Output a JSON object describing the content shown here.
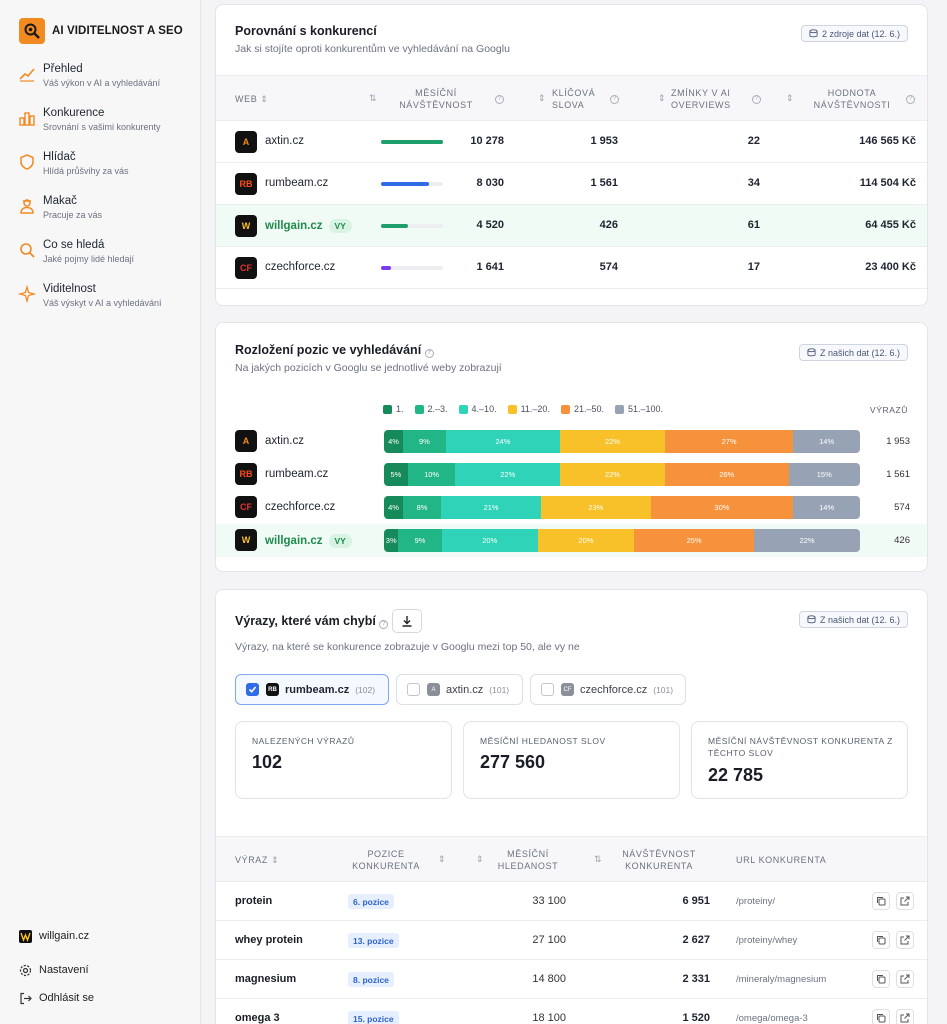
{
  "brand": {
    "name": "AI VIDITELNOST A SEO",
    "accent": "#f28a22"
  },
  "nav": [
    {
      "title": "Přehled",
      "sub": "Váš výkon v AI a vyhledávání",
      "icon": "chart-line-icon"
    },
    {
      "title": "Konkurence",
      "sub": "Srovnání s vašimi konkurenty",
      "icon": "bar-chart-icon"
    },
    {
      "title": "Hlídač",
      "sub": "Hlídá průšvihy za vás",
      "icon": "shield-icon"
    },
    {
      "title": "Makač",
      "sub": "Pracuje za vás",
      "icon": "worker-icon"
    },
    {
      "title": "Co se hledá",
      "sub": "Jaké pojmy lidé hledají",
      "icon": "search-icon"
    },
    {
      "title": "Viditelnost",
      "sub": "Váš výskyt v AI a vyhledávání",
      "icon": "sparkle-icon"
    }
  ],
  "footer": {
    "site": "willgain.cz",
    "settings": "Nastavení",
    "logout": "Odhlásit se"
  },
  "compare": {
    "title": "Porovnání s konkurencí",
    "subtitle": "Jak si stojíte oproti konkurentům ve vyhledávání na Googlu",
    "badge": "2 zdroje dat (12. 6.)",
    "headers": {
      "web": "WEB",
      "traffic": "MĚSÍČNÍ NÁVŠTĚVNOST",
      "keywords": "KLÍČOVÁ SLOVA",
      "ai": "ZMÍNKY V AI OVERVIEWS",
      "value": "HODNOTA NÁVŠTĚVNOSTI"
    },
    "rows": [
      {
        "site": "axtin.cz",
        "logo": "A",
        "traffic": "10 278",
        "traffic_share": 1.0,
        "bar": "#1e9e6a",
        "keywords": "1 953",
        "ai": "22",
        "value": "146 565 Kč",
        "me": false
      },
      {
        "site": "rumbeam.cz",
        "logo": "RB",
        "traffic": "8 030",
        "traffic_share": 0.78,
        "bar": "#2f6ce5",
        "keywords": "1 561",
        "ai": "34",
        "value": "114 504 Kč",
        "me": false
      },
      {
        "site": "willgain.cz",
        "logo": "W",
        "traffic": "4 520",
        "traffic_share": 0.44,
        "bar": "#1e9e6a",
        "keywords": "426",
        "ai": "61",
        "value": "64 455 Kč",
        "me": true,
        "me_label": "VY"
      },
      {
        "site": "czechforce.cz",
        "logo": "CF",
        "traffic": "1 641",
        "traffic_share": 0.16,
        "bar": "#7c3aed",
        "keywords": "574",
        "ai": "17",
        "value": "23 400 Kč",
        "me": false
      }
    ]
  },
  "distribution": {
    "title": "Rozložení pozic ve vyhledávání",
    "subtitle": "Na jakých pozicích v Googlu se jednotlivé weby zobrazují",
    "badge": "Z našich dat (12. 6.)",
    "count_header": "VÝRAZŮ",
    "legend": [
      {
        "label": "1.",
        "color": "#168a5a"
      },
      {
        "label": "2.–3.",
        "color": "#22b585"
      },
      {
        "label": "4.–10.",
        "color": "#2fd4b8"
      },
      {
        "label": "11.–20.",
        "color": "#f8c12a"
      },
      {
        "label": "21.–50.",
        "color": "#f6923c"
      },
      {
        "label": "51.–100.",
        "color": "#97a3b5"
      }
    ],
    "rows": [
      {
        "site": "axtin.cz",
        "logo": "A",
        "values": [
          4,
          9,
          24,
          22,
          27,
          14
        ],
        "count": "1 953",
        "me": false
      },
      {
        "site": "rumbeam.cz",
        "logo": "RB",
        "values": [
          5,
          10,
          22,
          22,
          26,
          15
        ],
        "count": "1 561",
        "me": false
      },
      {
        "site": "czechforce.cz",
        "logo": "CF",
        "values": [
          4,
          8,
          21,
          23,
          30,
          14
        ],
        "count": "574",
        "me": false
      },
      {
        "site": "willgain.cz",
        "logo": "W",
        "values": [
          3,
          9,
          20,
          20,
          25,
          22
        ],
        "count": "426",
        "me": true,
        "me_label": "VY"
      }
    ]
  },
  "missing": {
    "title": "Výrazy, které vám chybí",
    "subtitle": "Výrazy, na které se konkurence zobrazuje v Googlu mezi top 50, ale vy ne",
    "badge": "Z našich dat (12. 6.)",
    "competitors": [
      {
        "site": "rumbeam.cz",
        "logo": "RB",
        "count": "(102)",
        "checked": true
      },
      {
        "site": "axtin.cz",
        "logo": "A",
        "count": "(101)",
        "checked": false
      },
      {
        "site": "czechforce.cz",
        "logo": "CF",
        "count": "(101)",
        "checked": false
      }
    ],
    "stats": [
      {
        "label": "NALEZENÝCH VÝRAZŮ",
        "value": "102"
      },
      {
        "label": "MĚSÍČNÍ HLEDANOST SLOV",
        "value": "277 560"
      },
      {
        "label": "MĚSÍČNÍ NÁVŠTĚVNOST KONKURENTA Z TĚCHTO SLOV",
        "value": "22 785"
      }
    ],
    "headers": {
      "kw": "VÝRAZ",
      "pos": "POZICE KONKURENTA",
      "vol": "MĚSÍČNÍ HLEDANOST",
      "traffic": "NÁVŠTĚVNOST KONKURENTA",
      "url": "URL KONKURENTA"
    },
    "rows": [
      {
        "kw": "protein",
        "pos": "6. pozice",
        "vol": "33 100",
        "traffic": "6 951",
        "url": "/proteiny/"
      },
      {
        "kw": "whey protein",
        "pos": "13. pozice",
        "vol": "27 100",
        "traffic": "2 627",
        "url": "/proteiny/whey"
      },
      {
        "kw": "magnesium",
        "pos": "8. pozice",
        "vol": "14 800",
        "traffic": "2 331",
        "url": "/mineraly/magnesium"
      },
      {
        "kw": "omega 3",
        "pos": "15. pozice",
        "vol": "18 100",
        "traffic": "1 520",
        "url": "/omega/omega-3"
      }
    ]
  }
}
